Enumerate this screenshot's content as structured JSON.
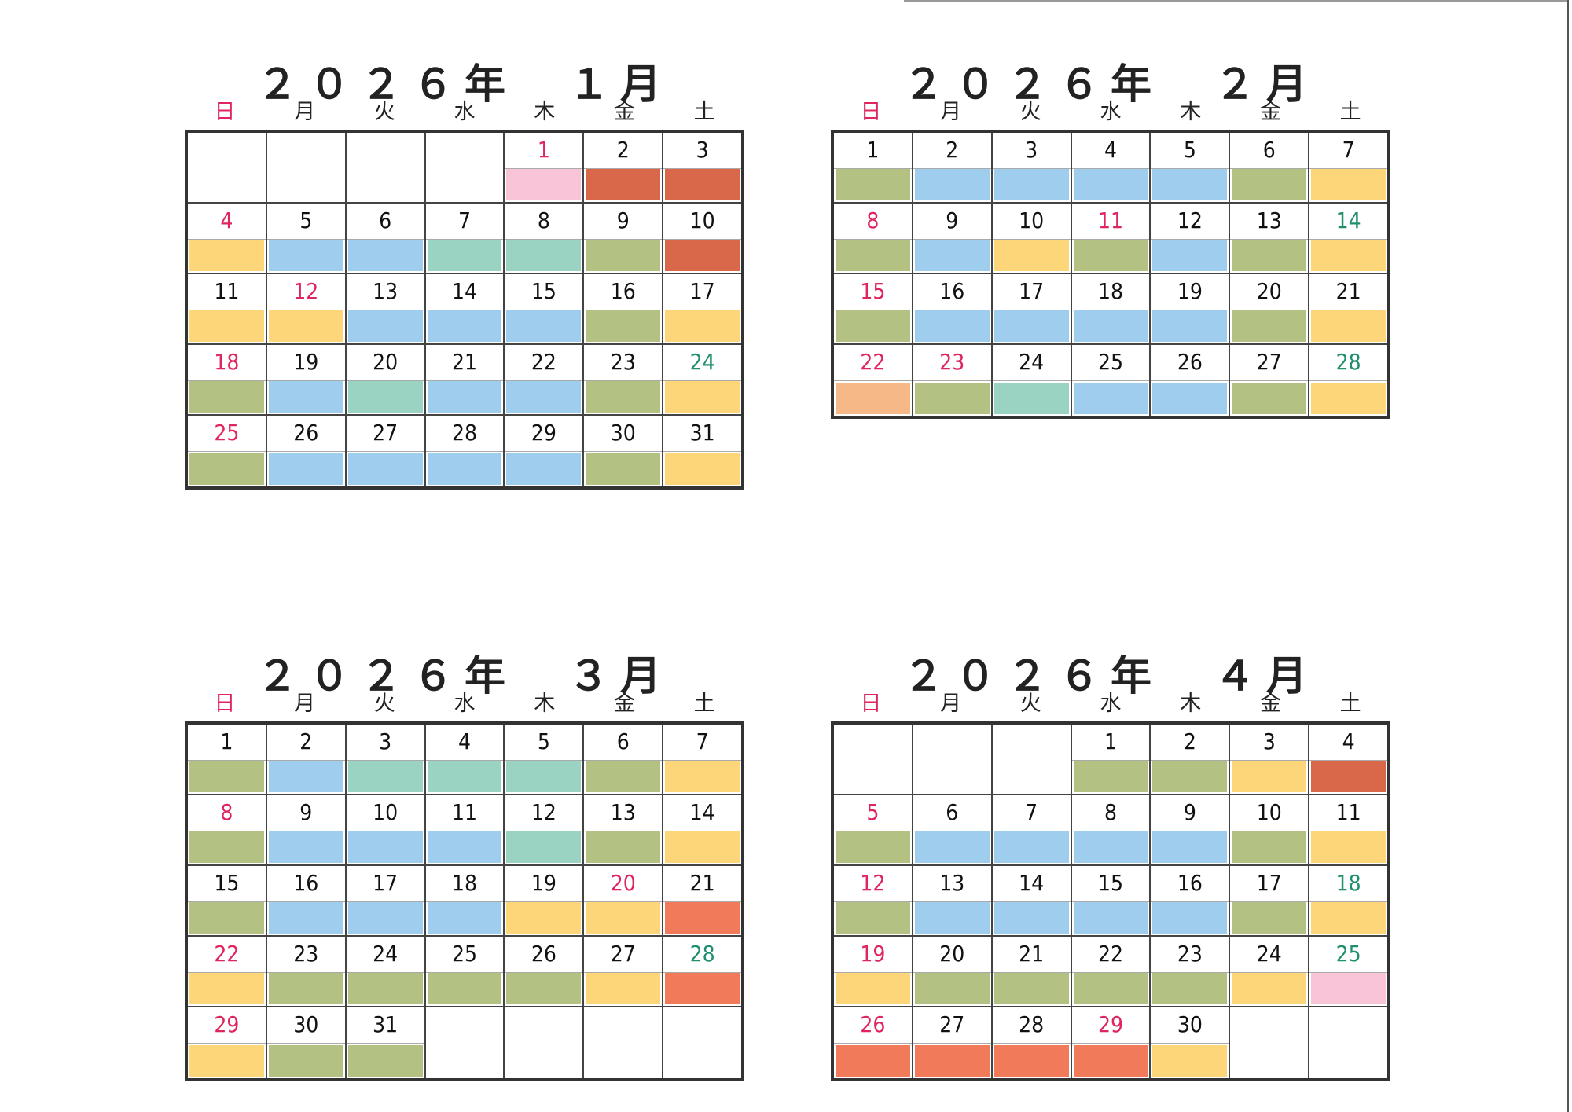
{
  "weekdays": [
    "日",
    "月",
    "火",
    "水",
    "木",
    "金",
    "土"
  ],
  "color_legend": {
    "green": "#b3c283",
    "blue": "#9fcdee",
    "teal": "#9bd3c3",
    "yellow": "#fdd67a",
    "orange": "#d9684a",
    "pink": "#f9c3d8",
    "salmon": "#f6b886",
    "coral": "#f07a59"
  },
  "months": [
    {
      "title": "２０２６年　１月",
      "weeks": [
        [
          {
            "d": ""
          },
          {
            "d": ""
          },
          {
            "d": ""
          },
          {
            "d": ""
          },
          {
            "d": "1",
            "t": "red",
            "c": "pink"
          },
          {
            "d": "2",
            "c": "orange"
          },
          {
            "d": "3",
            "c": "orange"
          }
        ],
        [
          {
            "d": "4",
            "t": "red",
            "c": "yellow"
          },
          {
            "d": "5",
            "c": "blue"
          },
          {
            "d": "6",
            "c": "blue"
          },
          {
            "d": "7",
            "c": "teal"
          },
          {
            "d": "8",
            "c": "teal"
          },
          {
            "d": "9",
            "c": "green"
          },
          {
            "d": "10",
            "c": "orange"
          }
        ],
        [
          {
            "d": "11",
            "c": "yellow"
          },
          {
            "d": "12",
            "t": "red",
            "c": "yellow"
          },
          {
            "d": "13",
            "c": "blue"
          },
          {
            "d": "14",
            "c": "blue"
          },
          {
            "d": "15",
            "c": "blue"
          },
          {
            "d": "16",
            "c": "green"
          },
          {
            "d": "17",
            "c": "yellow"
          }
        ],
        [
          {
            "d": "18",
            "t": "red",
            "c": "green"
          },
          {
            "d": "19",
            "c": "blue"
          },
          {
            "d": "20",
            "c": "teal"
          },
          {
            "d": "21",
            "c": "blue"
          },
          {
            "d": "22",
            "c": "blue"
          },
          {
            "d": "23",
            "c": "green"
          },
          {
            "d": "24",
            "t": "teal",
            "c": "yellow"
          }
        ],
        [
          {
            "d": "25",
            "t": "red",
            "c": "green"
          },
          {
            "d": "26",
            "c": "blue"
          },
          {
            "d": "27",
            "c": "blue"
          },
          {
            "d": "28",
            "c": "blue"
          },
          {
            "d": "29",
            "c": "blue"
          },
          {
            "d": "30",
            "c": "green"
          },
          {
            "d": "31",
            "c": "yellow"
          }
        ]
      ]
    },
    {
      "title": "２０２６年　２月",
      "weeks": [
        [
          {
            "d": "1",
            "c": "green"
          },
          {
            "d": "2",
            "c": "blue"
          },
          {
            "d": "3",
            "c": "blue"
          },
          {
            "d": "4",
            "c": "blue"
          },
          {
            "d": "5",
            "c": "blue"
          },
          {
            "d": "6",
            "c": "green"
          },
          {
            "d": "7",
            "c": "yellow"
          }
        ],
        [
          {
            "d": "8",
            "t": "red",
            "c": "green"
          },
          {
            "d": "9",
            "c": "blue"
          },
          {
            "d": "10",
            "c": "yellow"
          },
          {
            "d": "11",
            "t": "red",
            "c": "green"
          },
          {
            "d": "12",
            "c": "blue"
          },
          {
            "d": "13",
            "c": "green"
          },
          {
            "d": "14",
            "t": "teal",
            "c": "yellow"
          }
        ],
        [
          {
            "d": "15",
            "t": "red",
            "c": "green"
          },
          {
            "d": "16",
            "c": "blue"
          },
          {
            "d": "17",
            "c": "blue"
          },
          {
            "d": "18",
            "c": "blue"
          },
          {
            "d": "19",
            "c": "blue"
          },
          {
            "d": "20",
            "c": "green"
          },
          {
            "d": "21",
            "c": "yellow"
          }
        ],
        [
          {
            "d": "22",
            "t": "red",
            "c": "salmon"
          },
          {
            "d": "23",
            "t": "red",
            "c": "green"
          },
          {
            "d": "24",
            "c": "teal"
          },
          {
            "d": "25",
            "c": "blue"
          },
          {
            "d": "26",
            "c": "blue"
          },
          {
            "d": "27",
            "c": "green"
          },
          {
            "d": "28",
            "t": "teal",
            "c": "yellow"
          }
        ]
      ]
    },
    {
      "title": "２０２６年　３月",
      "weeks": [
        [
          {
            "d": "1",
            "c": "green"
          },
          {
            "d": "2",
            "c": "blue"
          },
          {
            "d": "3",
            "c": "teal"
          },
          {
            "d": "4",
            "c": "teal"
          },
          {
            "d": "5",
            "c": "teal"
          },
          {
            "d": "6",
            "c": "green"
          },
          {
            "d": "7",
            "c": "yellow"
          }
        ],
        [
          {
            "d": "8",
            "t": "red",
            "c": "green"
          },
          {
            "d": "9",
            "c": "blue"
          },
          {
            "d": "10",
            "c": "blue"
          },
          {
            "d": "11",
            "c": "blue"
          },
          {
            "d": "12",
            "c": "teal"
          },
          {
            "d": "13",
            "c": "green"
          },
          {
            "d": "14",
            "c": "yellow"
          }
        ],
        [
          {
            "d": "15",
            "c": "green"
          },
          {
            "d": "16",
            "c": "blue"
          },
          {
            "d": "17",
            "c": "blue"
          },
          {
            "d": "18",
            "c": "blue"
          },
          {
            "d": "19",
            "c": "yellow"
          },
          {
            "d": "20",
            "t": "red",
            "c": "yellow"
          },
          {
            "d": "21",
            "c": "coral"
          }
        ],
        [
          {
            "d": "22",
            "t": "red",
            "c": "yellow"
          },
          {
            "d": "23",
            "c": "green"
          },
          {
            "d": "24",
            "c": "green"
          },
          {
            "d": "25",
            "c": "green"
          },
          {
            "d": "26",
            "c": "green"
          },
          {
            "d": "27",
            "c": "yellow"
          },
          {
            "d": "28",
            "t": "teal",
            "c": "coral"
          }
        ],
        [
          {
            "d": "29",
            "t": "red",
            "c": "yellow"
          },
          {
            "d": "30",
            "c": "green"
          },
          {
            "d": "31",
            "c": "green"
          },
          {
            "d": ""
          },
          {
            "d": ""
          },
          {
            "d": ""
          },
          {
            "d": ""
          }
        ]
      ]
    },
    {
      "title": "２０２６年　４月",
      "weeks": [
        [
          {
            "d": ""
          },
          {
            "d": ""
          },
          {
            "d": ""
          },
          {
            "d": "1",
            "c": "green"
          },
          {
            "d": "2",
            "c": "green"
          },
          {
            "d": "3",
            "c": "yellow"
          },
          {
            "d": "4",
            "c": "orange"
          }
        ],
        [
          {
            "d": "5",
            "t": "red",
            "c": "green"
          },
          {
            "d": "6",
            "c": "blue"
          },
          {
            "d": "7",
            "c": "blue"
          },
          {
            "d": "8",
            "c": "blue"
          },
          {
            "d": "9",
            "c": "blue"
          },
          {
            "d": "10",
            "c": "green"
          },
          {
            "d": "11",
            "c": "yellow"
          }
        ],
        [
          {
            "d": "12",
            "t": "red",
            "c": "green"
          },
          {
            "d": "13",
            "c": "blue"
          },
          {
            "d": "14",
            "c": "blue"
          },
          {
            "d": "15",
            "c": "blue"
          },
          {
            "d": "16",
            "c": "blue"
          },
          {
            "d": "17",
            "c": "green"
          },
          {
            "d": "18",
            "t": "teal",
            "c": "yellow"
          }
        ],
        [
          {
            "d": "19",
            "t": "red",
            "c": "yellow"
          },
          {
            "d": "20",
            "c": "green"
          },
          {
            "d": "21",
            "c": "green"
          },
          {
            "d": "22",
            "c": "green"
          },
          {
            "d": "23",
            "c": "green"
          },
          {
            "d": "24",
            "c": "yellow"
          },
          {
            "d": "25",
            "t": "teal",
            "c": "pink"
          }
        ],
        [
          {
            "d": "26",
            "t": "red",
            "c": "coral"
          },
          {
            "d": "27",
            "c": "coral"
          },
          {
            "d": "28",
            "c": "coral"
          },
          {
            "d": "29",
            "t": "red",
            "c": "coral"
          },
          {
            "d": "30",
            "c": "yellow"
          },
          {
            "d": ""
          },
          {
            "d": ""
          }
        ]
      ]
    }
  ]
}
